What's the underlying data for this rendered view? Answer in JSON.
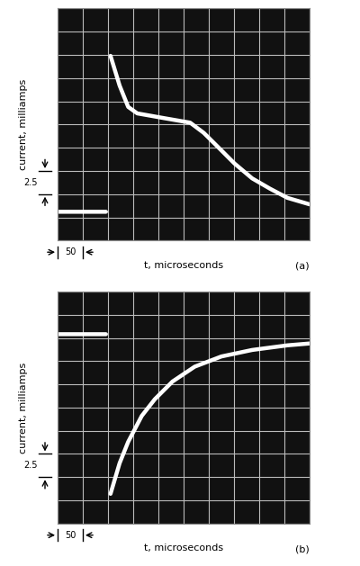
{
  "chart_data": [
    {
      "type": "line",
      "annotation": "(a)",
      "x_label": "t, microseconds",
      "y_label": "current, milliamps",
      "xlim": [
        0,
        500
      ],
      "ylim": [
        0,
        25
      ],
      "xticks": [
        0,
        50,
        100,
        150,
        200,
        250,
        300,
        350,
        400,
        450,
        500
      ],
      "yticks": [
        0,
        2.5,
        5,
        7.5,
        10,
        12.5,
        15,
        17.5,
        20,
        22.5,
        25
      ],
      "grid": true,
      "tick_labels": false,
      "color": "#ffffff",
      "x_scale": 50,
      "y_scale": 2.5,
      "x": [
        0,
        96,
        100,
        105,
        123,
        140,
        158,
        210,
        263,
        290,
        316,
        351,
        386,
        421,
        456,
        500
      ],
      "values": [
        3.1,
        3.1,
        null,
        19.9,
        16.7,
        14.4,
        13.7,
        13.2,
        12.7,
        11.6,
        10.2,
        8.3,
        6.7,
        5.6,
        4.6,
        3.9
      ]
    },
    {
      "type": "line",
      "annotation": "(b)",
      "x_label": "t, microseconds",
      "y_label": "current, milliamps",
      "xlim": [
        0,
        500
      ],
      "ylim": [
        0,
        25
      ],
      "xticks": [
        0,
        50,
        100,
        150,
        200,
        250,
        300,
        350,
        400,
        450,
        500
      ],
      "yticks": [
        0,
        2.5,
        5,
        7.5,
        10,
        12.5,
        15,
        17.5,
        20,
        22.5,
        25
      ],
      "grid": true,
      "tick_labels": false,
      "color": "#ffffff",
      "x_scale": 50,
      "y_scale": 2.5,
      "x": [
        0,
        96,
        100,
        105,
        123,
        140,
        167,
        193,
        228,
        272,
        325,
        386,
        456,
        500
      ],
      "values": [
        20.4,
        20.4,
        null,
        3.2,
        6.5,
        8.8,
        11.6,
        13.4,
        15.3,
        16.9,
        18.0,
        18.7,
        19.2,
        19.4
      ]
    }
  ]
}
